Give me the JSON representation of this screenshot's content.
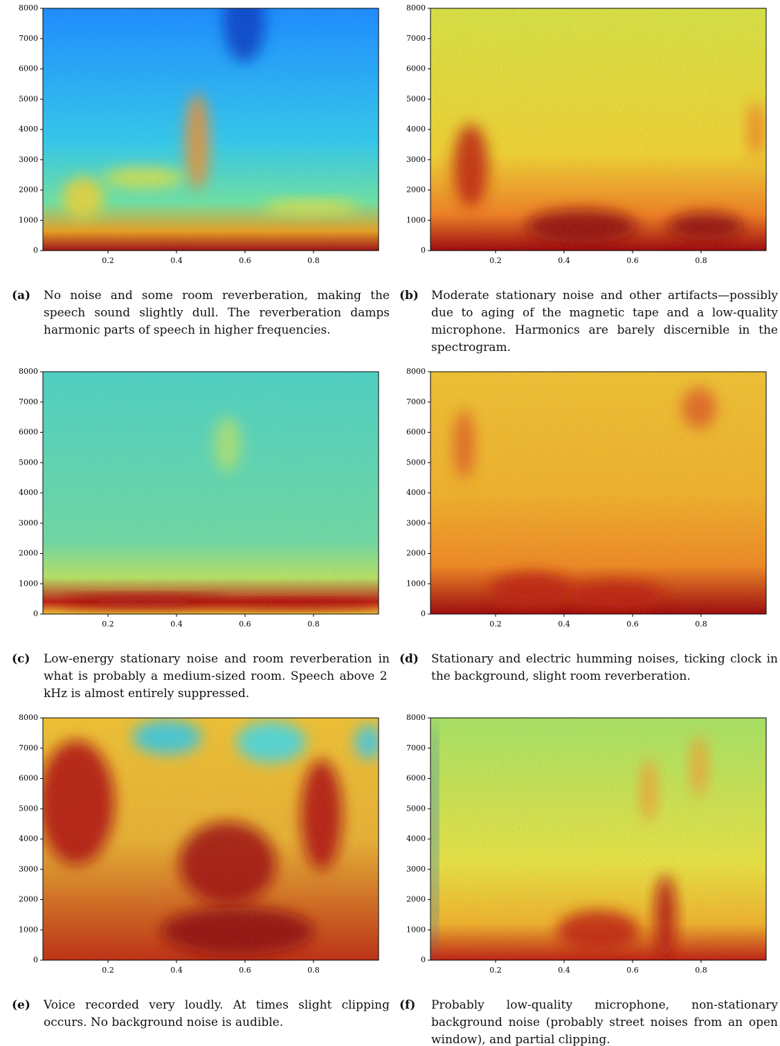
{
  "chart_data": [
    {
      "type": "spectrogram",
      "subcaption_label": "(a)",
      "subcaption": "No noise and some room reverberation, making the speech sound slightly dull. The reverberation damps harmonic parts of speech in higher frequencies.",
      "xlim": [
        0.01,
        0.99
      ],
      "ylim": [
        0,
        8000
      ],
      "xticks": [
        0.2,
        0.4,
        0.6,
        0.8
      ],
      "yticks": [
        0,
        1000,
        2000,
        3000,
        4000,
        5000,
        6000,
        7000,
        8000
      ]
    },
    {
      "type": "spectrogram",
      "subcaption_label": "(b)",
      "subcaption": "Moderate stationary noise and other artifacts—possibly due to aging of the magnetic tape and a low-quality microphone. Harmonics are barely discernible in the spectrogram.",
      "xlim": [
        0.01,
        0.99
      ],
      "ylim": [
        0,
        8000
      ],
      "xticks": [
        0.2,
        0.4,
        0.6,
        0.8
      ],
      "yticks": [
        0,
        1000,
        2000,
        3000,
        4000,
        5000,
        6000,
        7000,
        8000
      ]
    },
    {
      "type": "spectrogram",
      "subcaption_label": "(c)",
      "subcaption": "Low-energy stationary noise and room reverberation in what is probably a medium-sized room. Speech above 2 kHz is almost entirely suppressed.",
      "xlim": [
        0.01,
        0.99
      ],
      "ylim": [
        0,
        8000
      ],
      "xticks": [
        0.2,
        0.4,
        0.6,
        0.8
      ],
      "yticks": [
        0,
        1000,
        2000,
        3000,
        4000,
        5000,
        6000,
        7000,
        8000
      ]
    },
    {
      "type": "spectrogram",
      "subcaption_label": "(d)",
      "subcaption": "Stationary and electric humming noises, ticking clock in the background, slight room reverberation.",
      "xlim": [
        0.01,
        0.99
      ],
      "ylim": [
        0,
        8000
      ],
      "xticks": [
        0.2,
        0.4,
        0.6,
        0.8
      ],
      "yticks": [
        0,
        1000,
        2000,
        3000,
        4000,
        5000,
        6000,
        7000,
        8000
      ]
    },
    {
      "type": "spectrogram",
      "subcaption_label": "(e)",
      "subcaption": "Voice recorded very loudly. At times slight clipping occurs. No background noise is audible.",
      "xlim": [
        0.01,
        0.99
      ],
      "ylim": [
        0,
        8000
      ],
      "xticks": [
        0.2,
        0.4,
        0.6,
        0.8
      ],
      "yticks": [
        0,
        1000,
        2000,
        3000,
        4000,
        5000,
        6000,
        7000,
        8000
      ]
    },
    {
      "type": "spectrogram",
      "subcaption_label": "(f)",
      "subcaption": "Probably low-quality microphone, non-stationary background noise (probably street noises from an open window), and partial clipping.",
      "xlim": [
        0.01,
        0.99
      ],
      "ylim": [
        0,
        8000
      ],
      "xticks": [
        0.2,
        0.4,
        0.6,
        0.8
      ],
      "yticks": [
        0,
        1000,
        2000,
        3000,
        4000,
        5000,
        6000,
        7000,
        8000
      ]
    }
  ]
}
